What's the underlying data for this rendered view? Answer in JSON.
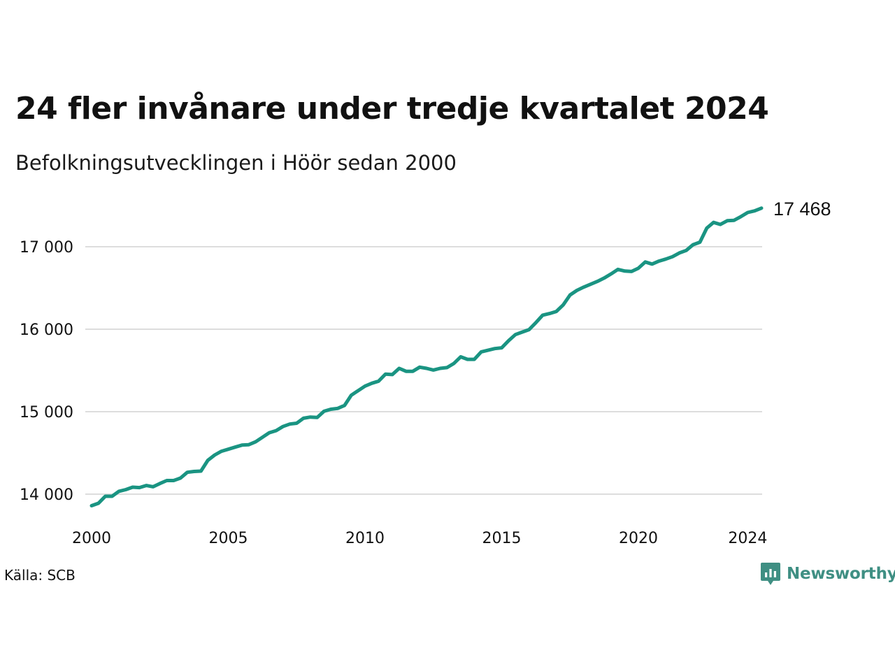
{
  "header": {
    "title": "24 fler invånare under tredje kvartalet 2024",
    "subtitle": "Befolkningsutvecklingen i Höör sedan 2000"
  },
  "footer": {
    "source": "Källa: SCB",
    "brand": "Newsworthy",
    "brand_icon": "newsworthy-logo-icon"
  },
  "colors": {
    "line": "#1a9482",
    "grid": "#dddddd",
    "brand": "#3f8f83"
  },
  "chart_data": {
    "type": "line",
    "title": "24 fler invånare under tredje kvartalet 2024",
    "subtitle": "Befolkningsutvecklingen i Höör sedan 2000",
    "xlabel": "",
    "ylabel": "",
    "frequency": "quarterly",
    "x_ticks": [
      2000,
      2005,
      2010,
      2015,
      2020,
      2024
    ],
    "y_ticks": [
      14000,
      15000,
      16000,
      17000
    ],
    "y_tick_labels": [
      "14 000",
      "15 000",
      "16 000",
      "17 000"
    ],
    "xlim": [
      "2000-Q1",
      "2024-Q3"
    ],
    "ylim": [
      13800,
      17700
    ],
    "grid": true,
    "legend": "none",
    "end_label": "17 468",
    "series": [
      {
        "x": [
          "2000-Q1",
          "2000-Q2",
          "2000-Q3",
          "2000-Q4",
          "2001-Q1",
          "2001-Q2",
          "2001-Q3",
          "2001-Q4",
          "2002-Q1",
          "2002-Q2",
          "2002-Q3",
          "2002-Q4",
          "2003-Q1",
          "2003-Q2",
          "2003-Q3",
          "2003-Q4",
          "2004-Q1",
          "2004-Q2",
          "2004-Q3",
          "2004-Q4",
          "2005-Q1",
          "2005-Q2",
          "2005-Q3",
          "2005-Q4",
          "2006-Q1",
          "2006-Q2",
          "2006-Q3",
          "2006-Q4",
          "2007-Q1",
          "2007-Q2",
          "2007-Q3",
          "2007-Q4",
          "2008-Q1",
          "2008-Q2",
          "2008-Q3",
          "2008-Q4",
          "2009-Q1",
          "2009-Q2",
          "2009-Q3",
          "2009-Q4",
          "2010-Q1",
          "2010-Q2",
          "2010-Q3",
          "2010-Q4",
          "2011-Q1",
          "2011-Q2",
          "2011-Q3",
          "2011-Q4",
          "2012-Q1",
          "2012-Q2",
          "2012-Q3",
          "2012-Q4",
          "2013-Q1",
          "2013-Q2",
          "2013-Q3",
          "2013-Q4",
          "2014-Q1",
          "2014-Q2",
          "2014-Q3",
          "2014-Q4",
          "2015-Q1",
          "2015-Q2",
          "2015-Q3",
          "2015-Q4",
          "2016-Q1",
          "2016-Q2",
          "2016-Q3",
          "2016-Q4",
          "2017-Q1",
          "2017-Q2",
          "2017-Q3",
          "2017-Q4",
          "2018-Q1",
          "2018-Q2",
          "2018-Q3",
          "2018-Q4",
          "2019-Q1",
          "2019-Q2",
          "2019-Q3",
          "2019-Q4",
          "2020-Q1",
          "2020-Q2",
          "2020-Q3",
          "2020-Q4",
          "2021-Q1",
          "2021-Q2",
          "2021-Q3",
          "2021-Q4",
          "2022-Q1",
          "2022-Q2",
          "2022-Q3",
          "2022-Q4",
          "2023-Q1",
          "2023-Q2",
          "2023-Q3",
          "2023-Q4",
          "2024-Q1",
          "2024-Q2",
          "2024-Q3"
        ],
        "values": [
          13860,
          13890,
          13975,
          13975,
          14035,
          14055,
          14085,
          14080,
          14105,
          14090,
          14130,
          14165,
          14165,
          14195,
          14265,
          14275,
          14280,
          14410,
          14475,
          14520,
          14545,
          14570,
          14595,
          14600,
          14635,
          14690,
          14745,
          14770,
          14820,
          14850,
          14860,
          14920,
          14935,
          14930,
          15005,
          15030,
          15040,
          15075,
          15200,
          15255,
          15310,
          15345,
          15370,
          15455,
          15450,
          15525,
          15490,
          15490,
          15540,
          15525,
          15505,
          15525,
          15535,
          15585,
          15665,
          15635,
          15635,
          15725,
          15745,
          15765,
          15775,
          15860,
          15935,
          15965,
          15995,
          16080,
          16170,
          16190,
          16215,
          16295,
          16415,
          16470,
          16510,
          16545,
          16580,
          16620,
          16670,
          16725,
          16705,
          16700,
          16740,
          16815,
          16790,
          16825,
          16850,
          16880,
          16925,
          16955,
          17025,
          17055,
          17225,
          17295,
          17270,
          17315,
          17320,
          17365,
          17415,
          17435,
          17468
        ]
      }
    ]
  }
}
